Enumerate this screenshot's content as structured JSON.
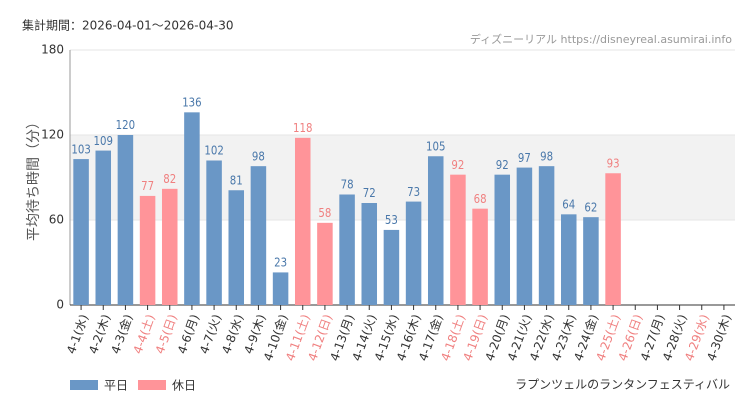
{
  "chart_data": {
    "type": "bar",
    "subtitle": "集計期間：2026-04-01〜2026-04-30",
    "source": "ディズニーリアル https://disneyreal.asumirai.info",
    "y_label": "平均待ち時間（分）",
    "footnote": "ラプンツェルのランタンフェスティバル",
    "categories": [
      "4-1(水)",
      "4-2(木)",
      "4-3(金)",
      "4-4(土)",
      "4-5(日)",
      "4-6(月)",
      "4-7(火)",
      "4-8(水)",
      "4-9(木)",
      "4-10(金)",
      "4-11(土)",
      "4-12(日)",
      "4-13(月)",
      "4-14(火)",
      "4-15(水)",
      "4-16(木)",
      "4-17(金)",
      "4-18(土)",
      "4-19(日)",
      "4-20(月)",
      "4-21(火)",
      "4-22(水)",
      "4-23(木)",
      "4-24(金)",
      "4-25(土)",
      "4-26(日)",
      "4-27(月)",
      "4-28(火)",
      "4-29(水)",
      "4-30(木)"
    ],
    "category_colors": [
      "#333",
      "#333",
      "#333",
      "#f08080",
      "#f08080",
      "#333",
      "#333",
      "#333",
      "#333",
      "#333",
      "#f08080",
      "#f08080",
      "#333",
      "#333",
      "#333",
      "#333",
      "#333",
      "#f08080",
      "#f08080",
      "#333",
      "#333",
      "#333",
      "#333",
      "#333",
      "#f08080",
      "#f08080",
      "#333",
      "#333",
      "#f08080",
      "#333"
    ],
    "series": [
      {
        "name": "平日",
        "color": "#6a97c6",
        "label_color": "#4a78aa",
        "values": [
          103,
          109,
          120,
          null,
          null,
          136,
          102,
          81,
          98,
          23,
          null,
          null,
          78,
          72,
          53,
          73,
          105,
          null,
          null,
          92,
          97,
          98,
          64,
          62,
          null,
          null,
          null,
          null,
          null,
          null
        ]
      },
      {
        "name": "休日",
        "color": "#ff9499",
        "label_color": "#f08080",
        "values": [
          null,
          null,
          null,
          77,
          82,
          null,
          null,
          null,
          null,
          null,
          118,
          58,
          null,
          null,
          null,
          null,
          null,
          92,
          68,
          null,
          null,
          null,
          null,
          null,
          93,
          null,
          null,
          null,
          null,
          null
        ]
      }
    ],
    "ylim": [
      0,
      180
    ],
    "yticks": [
      0,
      60,
      120,
      180
    ],
    "band_color": "#f2f2f2"
  }
}
